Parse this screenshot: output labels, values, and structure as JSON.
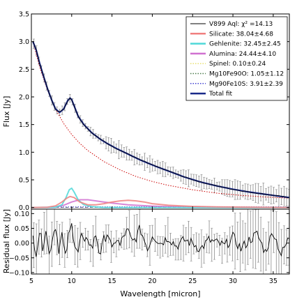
{
  "chart_data": [
    {
      "type": "line",
      "xlabel": "",
      "ylabel": "Flux [Jy]",
      "xlim": [
        5,
        37
      ],
      "ylim": [
        -0.03,
        3.5
      ],
      "xticks": [
        5,
        10,
        15,
        20,
        25,
        30,
        35
      ],
      "yticks": [
        0.0,
        0.5,
        1.0,
        1.5,
        2.0,
        2.5,
        3.0,
        3.5
      ],
      "ytick_labels": [
        "0.0",
        "0.5",
        "1.0",
        "1.5",
        "2.0",
        "2.5",
        "3.0",
        "3.5"
      ],
      "legend_position": "top-right",
      "legend": [
        {
          "text": "V899 Aql: χ² =14.13",
          "color": "#000000",
          "style": "solid"
        },
        {
          "text": "Silicate: 38.04±4.68",
          "color": "#f08080",
          "style": "solid"
        },
        {
          "text": "Gehlenite: 32.45±2.45",
          "color": "#4fd8d8",
          "style": "solid"
        },
        {
          "text": "Alumina: 24.44±4.10",
          "color": "#d070d0",
          "style": "solid"
        },
        {
          "text": "Spinel: 0.10±0.24",
          "color": "#e8e070",
          "style": "dotted"
        },
        {
          "text": "Mg10Fe90O: 1.05±1.12",
          "color": "#4a7a4a",
          "style": "dotted"
        },
        {
          "text": "Mg90Fe10S: 3.91±2.39",
          "color": "#4040d0",
          "style": "dotted"
        },
        {
          "text": "Total fit",
          "color": "#1a2a8a",
          "style": "solid"
        }
      ],
      "series": [
        {
          "color": "#1a2a8a",
          "x": [
            5.2,
            5.6,
            6.0,
            6.5,
            7.0,
            7.5,
            8.0,
            8.5,
            9.0,
            9.5,
            9.8,
            10.0,
            10.3,
            10.8,
            11.5,
            12.5,
            13.5,
            14.5,
            15.5,
            16.5,
            17.5,
            18.5,
            19.5,
            20.5,
            22.0,
            24.0,
            26.0,
            28.0,
            30.0,
            32.0,
            34.0,
            36.0,
            37.0
          ],
          "y": [
            3.0,
            2.85,
            2.62,
            2.38,
            2.15,
            1.95,
            1.78,
            1.72,
            1.78,
            1.93,
            1.98,
            1.95,
            1.84,
            1.65,
            1.5,
            1.35,
            1.24,
            1.15,
            1.07,
            1.0,
            0.93,
            0.86,
            0.8,
            0.74,
            0.66,
            0.55,
            0.46,
            0.39,
            0.33,
            0.28,
            0.24,
            0.2,
            0.18
          ]
        },
        {
          "color": "#cc0000",
          "style": "dotted",
          "x": [
            5.2,
            6,
            7,
            8,
            9,
            10,
            11,
            12,
            14,
            16,
            18,
            20,
            22,
            25,
            28,
            31,
            34,
            37
          ],
          "y": [
            3.0,
            2.55,
            2.12,
            1.78,
            1.52,
            1.32,
            1.16,
            1.03,
            0.83,
            0.68,
            0.56,
            0.47,
            0.4,
            0.32,
            0.26,
            0.22,
            0.19,
            0.17
          ]
        },
        {
          "color": "#f08080",
          "x": [
            5,
            7,
            8,
            8.8,
            9.4,
            9.8,
            10.3,
            11,
            12,
            13,
            14,
            15,
            16,
            17,
            18,
            19,
            20,
            22,
            25,
            28,
            37
          ],
          "y": [
            0,
            0.005,
            0.03,
            0.1,
            0.17,
            0.2,
            0.18,
            0.1,
            0.05,
            0.05,
            0.07,
            0.1,
            0.12,
            0.13,
            0.12,
            0.1,
            0.07,
            0.04,
            0.02,
            0.01,
            0
          ]
        },
        {
          "color": "#4fd8d8",
          "x": [
            5,
            8,
            8.8,
            9.3,
            9.7,
            10.0,
            10.3,
            10.8,
            11.5,
            12.5,
            14,
            20,
            37
          ],
          "y": [
            0,
            0.005,
            0.05,
            0.18,
            0.32,
            0.35,
            0.28,
            0.14,
            0.05,
            0.015,
            0,
            0,
            0
          ]
        },
        {
          "color": "#d070d0",
          "x": [
            5,
            8,
            9,
            10,
            11,
            12,
            13,
            14,
            15,
            16,
            17,
            18,
            20,
            22,
            25,
            28,
            37
          ],
          "y": [
            0,
            0.005,
            0.04,
            0.1,
            0.14,
            0.14,
            0.12,
            0.1,
            0.08,
            0.065,
            0.05,
            0.04,
            0.025,
            0.015,
            0.008,
            0.004,
            0
          ]
        },
        {
          "color": "#4040d0",
          "style": "dotted",
          "x": [
            5,
            10,
            15,
            20,
            25,
            30,
            37
          ],
          "y": [
            0.005,
            0.01,
            0.012,
            0.012,
            0.012,
            0.012,
            0.01
          ]
        }
      ]
    },
    {
      "type": "line",
      "xlabel": "Wavelength [micron]",
      "ylabel": "Residual flux [Jy]",
      "xlim": [
        5,
        37
      ],
      "ylim": [
        -0.105,
        0.115
      ],
      "xticks": [
        5,
        10,
        15,
        20,
        25,
        30,
        35
      ],
      "yticks": [
        -0.1,
        -0.05,
        0.0,
        0.05,
        0.1
      ],
      "ytick_labels": [
        "−0.10",
        "−0.05",
        "0.00",
        "0.05",
        "0.10"
      ],
      "series": [
        {
          "color": "#000000",
          "x": [
            5.2,
            5.6,
            6.0,
            6.4,
            6.8,
            7.2,
            7.6,
            8.0,
            8.4,
            8.8,
            9.2,
            9.6,
            10.0,
            10.4,
            10.8,
            11.2,
            11.6,
            12.0,
            12.5,
            13.0,
            13.5,
            14.0,
            14.5,
            15.0,
            15.5,
            16.0,
            16.5,
            17.0,
            17.5,
            18.0,
            18.5,
            19.0,
            19.5,
            20.0,
            21.0,
            22.0,
            23.0,
            24.0,
            25.0,
            26.0,
            27.0,
            28.0,
            29.0,
            30.0,
            31.0,
            32.0,
            33.0,
            34.0,
            35.0,
            36.0,
            37.0
          ],
          "y": [
            0.02,
            -0.03,
            0.04,
            -0.01,
            0.05,
            -0.04,
            0.02,
            0.06,
            -0.02,
            0.03,
            -0.05,
            0.02,
            0.06,
            0.0,
            -0.03,
            0.03,
            -0.01,
            0.02,
            -0.02,
            0.03,
            -0.04,
            0.01,
            0.04,
            -0.03,
            0.02,
            -0.01,
            0.03,
            0.04,
            0.0,
            0.02,
            0.05,
            0.01,
            -0.02,
            0.03,
            0.0,
            0.02,
            -0.01,
            0.01,
            0.0,
            -0.02,
            0.01,
            0.0,
            -0.01,
            0.02,
            -0.02,
            0.01,
            0.03,
            -0.03,
            0.04,
            -0.04,
            0.02
          ]
        }
      ]
    }
  ]
}
